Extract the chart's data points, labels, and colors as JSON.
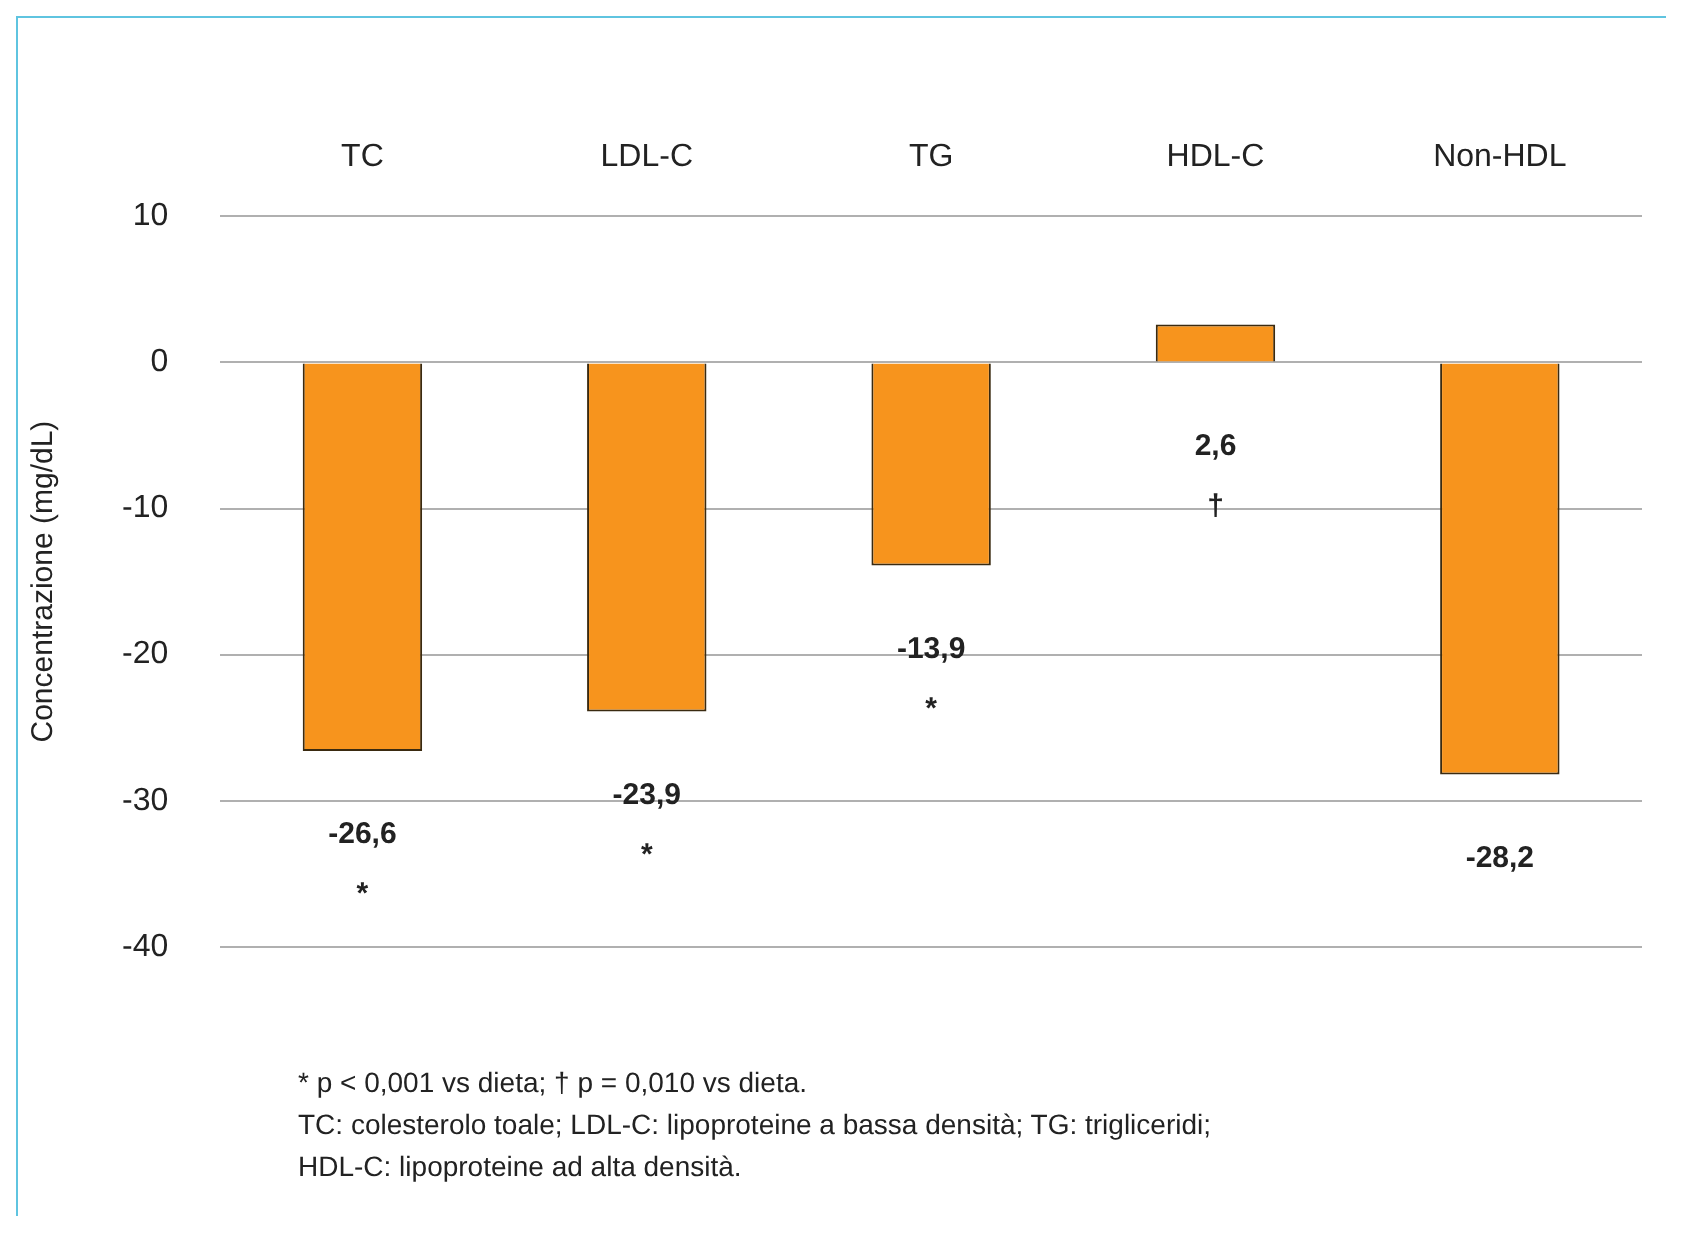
{
  "chart_data": {
    "type": "bar",
    "ylabel": "Concentrazione (mg/dL)",
    "categories": [
      "TC",
      "LDL-C",
      "TG",
      "HDL-C",
      "Non-HDL"
    ],
    "values": [
      -26.6,
      -23.9,
      -13.9,
      2.6,
      -28.2
    ],
    "value_labels": [
      "-26,6\n*",
      "-23,9\n*",
      "-13,9\n*",
      "2,6\n†",
      "-28,2"
    ],
    "color": "#f7941d",
    "ylim": [
      -40,
      10
    ],
    "yticks": [
      -40,
      -30,
      -20,
      -10,
      0,
      10
    ],
    "grid": "y",
    "annotations": [
      "* p < 0,001 vs dieta; † p = 0,010 vs dieta.",
      "TC: colesterolo toale; LDL-C: lipoproteine a bassa densità; TG: trigliceridi;",
      "HDL-C: lipoproteine ad alta densità."
    ]
  }
}
